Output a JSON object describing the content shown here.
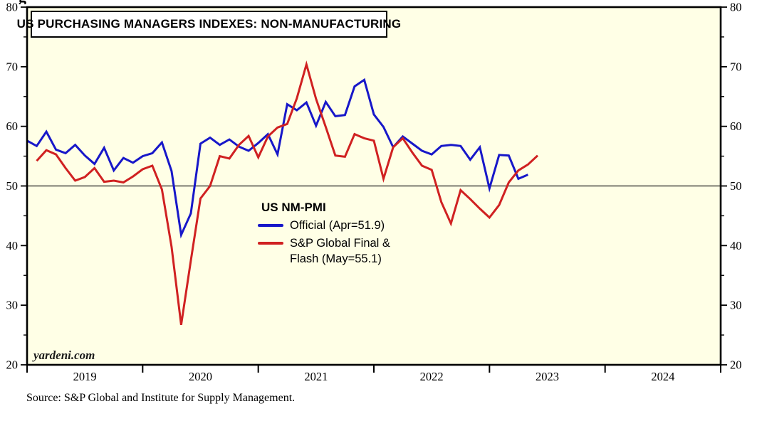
{
  "artifact_glyph": "g",
  "title_box": {
    "title": "US PURCHASING MANAGERS INDEXES: NON-MANUFACTURING"
  },
  "legend": {
    "header": "US NM-PMI",
    "items": [
      {
        "name": "official",
        "color": "#1717C9",
        "lines": [
          "Official (Apr=51.9)"
        ]
      },
      {
        "name": "sp-global-final-flash",
        "color": "#D02121",
        "lines": [
          "S&P Global Final &",
          "Flash (May=55.1)"
        ]
      }
    ]
  },
  "watermark": "yardeni.com",
  "source_note": "Source: S&P Global and Institute for Supply Management.",
  "chart_data": {
    "type": "line",
    "title": "US PURCHASING MANAGERS INDEXES: NON-MANUFACTURING",
    "plot_background": "#FFFFE6",
    "ylim": [
      20,
      80
    ],
    "yticks_major": [
      20,
      30,
      40,
      50,
      60,
      70,
      80
    ],
    "yticks_minor": [
      25,
      35,
      45,
      55,
      65,
      75
    ],
    "y_axis_labels_both_sides": true,
    "reference_line": 50,
    "x_year_labels": [
      "2019",
      "2020",
      "2021",
      "2022",
      "2023",
      "2024"
    ],
    "x_epoch": "2018-12",
    "x_months_total": 72,
    "grid": "none (single horizontal reference line at 50)",
    "legend_position": "inside-left-center",
    "series": [
      {
        "name": "US NM-PMI Official (ISM)",
        "legend": "Official (Apr=51.9)",
        "color": "#1717C9",
        "frequency": "monthly",
        "start": "2018-12",
        "end": "2023-04",
        "values": [
          57.6,
          56.7,
          59.1,
          56.1,
          55.5,
          56.9,
          55.1,
          53.7,
          56.4,
          52.6,
          54.7,
          53.9,
          55.0,
          55.5,
          57.3,
          52.5,
          41.8,
          45.4,
          57.1,
          58.1,
          56.9,
          57.8,
          56.6,
          55.9,
          57.2,
          58.7,
          55.3,
          63.7,
          62.7,
          64.0,
          60.1,
          64.1,
          61.7,
          61.9,
          66.7,
          67.8,
          62.0,
          59.9,
          56.5,
          58.3,
          57.1,
          55.9,
          55.3,
          56.7,
          56.9,
          56.7,
          54.4,
          56.5,
          49.6,
          55.2,
          55.1,
          51.2,
          51.9
        ]
      },
      {
        "name": "S&P Global Final & Flash",
        "legend": "S&P Global Final & Flash (May=55.1)",
        "color": "#D02121",
        "frequency": "monthly",
        "start": "2019-01",
        "end": "2023-05",
        "values": [
          54.2,
          56.0,
          55.3,
          53.0,
          50.9,
          51.5,
          53.0,
          50.7,
          50.9,
          50.6,
          51.6,
          52.8,
          53.4,
          49.4,
          39.8,
          26.7,
          37.5,
          47.9,
          50.0,
          55.0,
          54.6,
          56.9,
          58.4,
          54.8,
          58.3,
          59.8,
          60.4,
          64.7,
          70.4,
          64.6,
          59.9,
          55.1,
          54.9,
          58.7,
          58.0,
          57.6,
          51.2,
          56.5,
          58.0,
          55.6,
          53.4,
          52.7,
          47.3,
          43.7,
          49.3,
          47.8,
          46.2,
          44.7,
          46.8,
          50.6,
          52.6,
          53.6,
          55.1
        ]
      }
    ]
  }
}
